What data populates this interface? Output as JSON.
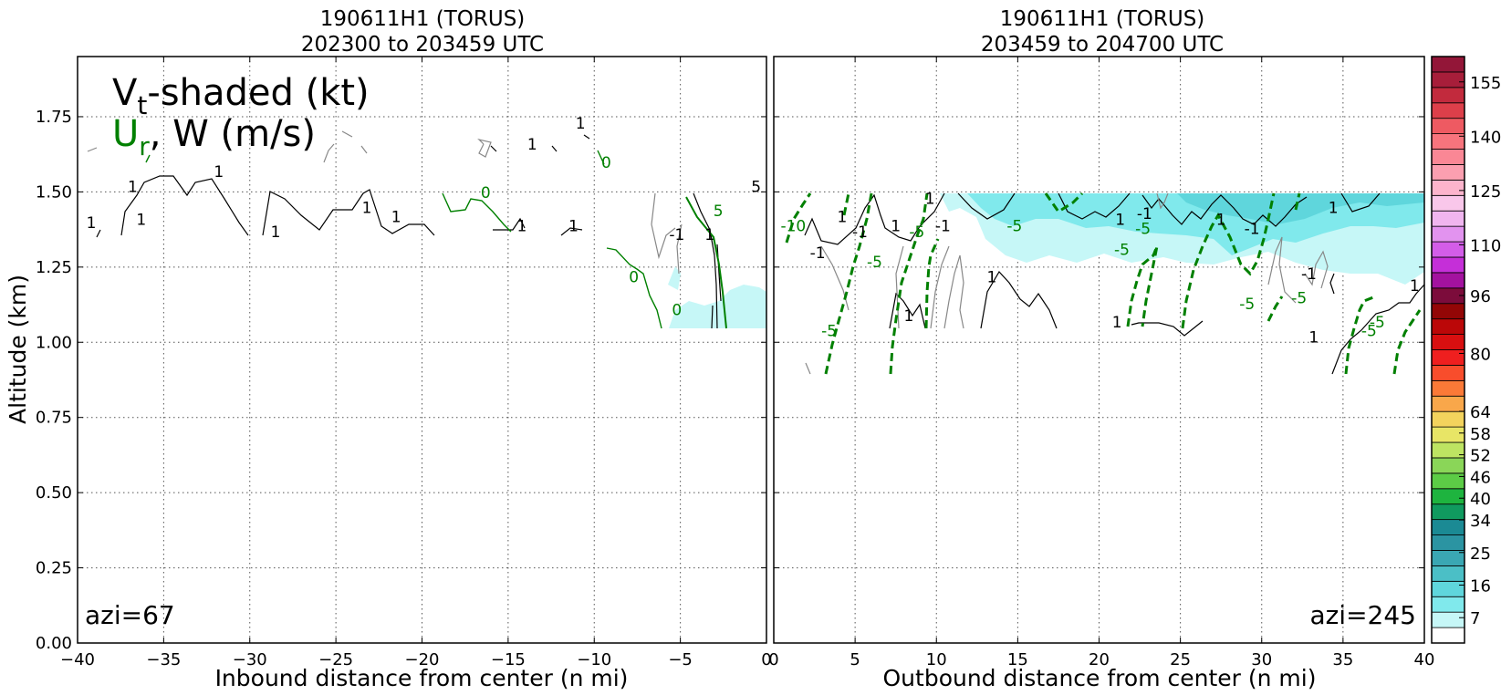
{
  "left_panel": {
    "title_line1": "190611H1 (TORUS)",
    "title_line2": "202300 to 203459 UTC",
    "xlabel": "Inbound distance from center (n mi)",
    "ylabel": "Altitude (km)",
    "legend_vt_main": "V",
    "legend_vt_sub": "t",
    "legend_vt_rest": "-shaded (kt)",
    "legend_ur_main": "U",
    "legend_ur_sub": "r",
    "legend_w": ", W (m/s)",
    "azi_label": "azi=67"
  },
  "right_panel": {
    "title_line1": "190611H1 (TORUS)",
    "title_line2": "203459 to 204700 UTC",
    "xlabel": "Outbound distance from center (n mi)",
    "azi_label": "azi=245"
  },
  "colors": {
    "vt_shade_light": "#c6f7f7",
    "vt_shade_mid": "#80e9ec",
    "vt_shade_dark": "#5fd6dc",
    "ur_contour": "#008000",
    "w_contour": "#000000",
    "w_zero_contour": "#888888"
  },
  "chart_data": [
    {
      "type": "contour",
      "panel": "left",
      "xlim": [
        -40,
        0
      ],
      "ylim": [
        0,
        1.95
      ],
      "x_ticks": [
        -40,
        -35,
        -30,
        -25,
        -20,
        -15,
        -10,
        -5,
        0
      ],
      "x_tick_labels": [
        "−40",
        "−35",
        "−30",
        "−25",
        "−20",
        "−15",
        "−10",
        "−5",
        "0"
      ],
      "y_ticks": [
        0,
        0.25,
        0.5,
        0.75,
        1.0,
        1.25,
        1.5,
        1.75
      ],
      "y_tick_labels": [
        "0.00",
        "0.25",
        "0.50",
        "0.75",
        "1.00",
        "1.25",
        "1.50",
        "1.75"
      ],
      "grid": true,
      "contour_labels": [
        {
          "text": "1",
          "x": -39.2,
          "y": 1.38,
          "color": "black"
        },
        {
          "text": "1",
          "x": -36.3,
          "y": 1.39,
          "color": "black"
        },
        {
          "text": "1",
          "x": -36.8,
          "y": 1.5,
          "color": "black"
        },
        {
          "text": "1",
          "x": -31.8,
          "y": 1.55,
          "color": "black"
        },
        {
          "text": "1",
          "x": -28.5,
          "y": 1.35,
          "color": "black"
        },
        {
          "text": "1",
          "x": -21.5,
          "y": 1.4,
          "color": "black"
        },
        {
          "text": "1",
          "x": -23.2,
          "y": 1.43,
          "color": "black"
        },
        {
          "text": "0",
          "x": -16.3,
          "y": 1.48,
          "color": "green"
        },
        {
          "text": "1",
          "x": -14.2,
          "y": 1.37,
          "color": "black"
        },
        {
          "text": "1",
          "x": -13.6,
          "y": 1.64,
          "color": "black"
        },
        {
          "text": "1",
          "x": -11.2,
          "y": 1.37,
          "color": "black"
        },
        {
          "text": "1",
          "x": -10.8,
          "y": 1.71,
          "color": "black"
        },
        {
          "text": "0",
          "x": -9.3,
          "y": 1.58,
          "color": "green"
        },
        {
          "text": "0",
          "x": -7.7,
          "y": 1.2,
          "color": "green"
        },
        {
          "text": "-1",
          "x": -5.2,
          "y": 1.34,
          "color": "black"
        },
        {
          "text": "1",
          "x": -3.3,
          "y": 1.34,
          "color": "black"
        },
        {
          "text": "5",
          "x": -2.8,
          "y": 1.42,
          "color": "green"
        },
        {
          "text": "0",
          "x": -5.2,
          "y": 1.09,
          "color": "green"
        },
        {
          "text": "5",
          "x": -0.6,
          "y": 1.5,
          "color": "black"
        }
      ]
    },
    {
      "type": "contour",
      "panel": "right",
      "xlim": [
        0,
        40
      ],
      "ylim": [
        0,
        1.95
      ],
      "x_ticks": [
        0,
        5,
        10,
        15,
        20,
        25,
        30,
        35,
        40
      ],
      "x_tick_labels": [
        "0",
        "5",
        "10",
        "15",
        "20",
        "25",
        "30",
        "35",
        "40"
      ],
      "y_ticks": [
        0,
        0.25,
        0.5,
        0.75,
        1.0,
        1.25,
        1.5,
        1.75
      ],
      "grid": true,
      "contour_labels": [
        {
          "text": "-10",
          "x": 1.2,
          "y": 1.37,
          "color": "green"
        },
        {
          "text": "-1",
          "x": 2.7,
          "y": 1.28,
          "color": "black"
        },
        {
          "text": "1",
          "x": 4.2,
          "y": 1.4,
          "color": "black"
        },
        {
          "text": "-1",
          "x": 5.3,
          "y": 1.35,
          "color": "black"
        },
        {
          "text": "-5",
          "x": 6.2,
          "y": 1.25,
          "color": "green"
        },
        {
          "text": "-5",
          "x": 3.4,
          "y": 1.02,
          "color": "green"
        },
        {
          "text": "1",
          "x": 7.5,
          "y": 1.37,
          "color": "black"
        },
        {
          "text": "-5",
          "x": 8.8,
          "y": 1.35,
          "color": "green"
        },
        {
          "text": "1",
          "x": 9.6,
          "y": 1.46,
          "color": "black"
        },
        {
          "text": "-1",
          "x": 10.4,
          "y": 1.37,
          "color": "black"
        },
        {
          "text": "1",
          "x": 8.3,
          "y": 1.07,
          "color": "black"
        },
        {
          "text": "1",
          "x": 13.4,
          "y": 1.2,
          "color": "black"
        },
        {
          "text": "-5",
          "x": 14.8,
          "y": 1.37,
          "color": "green"
        },
        {
          "text": "-5",
          "x": 21.4,
          "y": 1.29,
          "color": "green"
        },
        {
          "text": "1",
          "x": 21.3,
          "y": 1.39,
          "color": "black"
        },
        {
          "text": "-1",
          "x": 22.8,
          "y": 1.41,
          "color": "black"
        },
        {
          "text": "-5",
          "x": 22.7,
          "y": 1.36,
          "color": "green"
        },
        {
          "text": "1",
          "x": 21.1,
          "y": 1.05,
          "color": "black"
        },
        {
          "text": "1",
          "x": 27.5,
          "y": 1.39,
          "color": "black"
        },
        {
          "text": "-1",
          "x": 29.4,
          "y": 1.36,
          "color": "black"
        },
        {
          "text": "1",
          "x": 34.4,
          "y": 1.43,
          "color": "black"
        },
        {
          "text": "-1",
          "x": 32.9,
          "y": 1.21,
          "color": "black"
        },
        {
          "text": "-5",
          "x": 29.1,
          "y": 1.11,
          "color": "green"
        },
        {
          "text": "-5",
          "x": 32.3,
          "y": 1.13,
          "color": "green"
        },
        {
          "text": "1",
          "x": 33.2,
          "y": 1.0,
          "color": "black"
        },
        {
          "text": "-5",
          "x": 36.6,
          "y": 1.02,
          "color": "green"
        },
        {
          "text": "-5",
          "x": 37.1,
          "y": 1.05,
          "color": "green"
        },
        {
          "text": "1",
          "x": 39.4,
          "y": 1.17,
          "color": "black"
        }
      ]
    },
    {
      "type": "colorbar",
      "tick_labels": [
        "155",
        "140",
        "125",
        "110",
        "96",
        "80",
        "64",
        "58",
        "52",
        "46",
        "40",
        "34",
        "25",
        "16",
        "7"
      ],
      "tick_positions": [
        155,
        140,
        125,
        110,
        96,
        80,
        64,
        58,
        52,
        46,
        40,
        34,
        25,
        16,
        7
      ],
      "colors_bottom_to_top": [
        "#ffffff",
        "#c6f7f7",
        "#80e9ec",
        "#5fd6dc",
        "#4bbfc6",
        "#3aa7b3",
        "#2b94a2",
        "#1b8a94",
        "#109a5f",
        "#1eb43f",
        "#5ccc46",
        "#8ad658",
        "#bde462",
        "#e8e566",
        "#f3d35d",
        "#f9a74a",
        "#fb7937",
        "#f84d2c",
        "#ef1f1f",
        "#d80f10",
        "#bb0708",
        "#930606",
        "#7c0c3b",
        "#a3129f",
        "#c52fd8",
        "#d35de8",
        "#e293ef",
        "#f0b5ef",
        "#f9c7ea",
        "#fcb4cc",
        "#fb9fb0",
        "#fa8795",
        "#f7747d",
        "#ee5a62",
        "#dd3f4a",
        "#c22a3d",
        "#a71e3a",
        "#931638"
      ]
    }
  ]
}
